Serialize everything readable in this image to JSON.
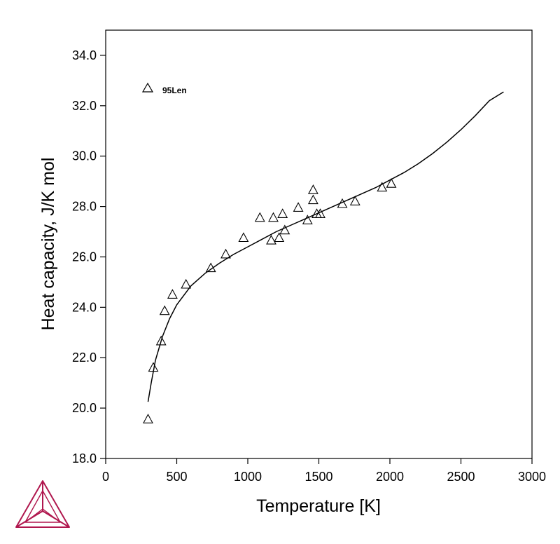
{
  "chart_data": {
    "type": "scatter",
    "xlabel": "Temperature [K]",
    "ylabel": "Heat capacity, J/K mol",
    "xlim": [
      0,
      3000
    ],
    "ylim": [
      18.0,
      35.0
    ],
    "x_ticks": [
      "0",
      "500",
      "1000",
      "1500",
      "2000",
      "2500",
      "3000"
    ],
    "y_ticks": [
      "18.0",
      "20.0",
      "22.0",
      "24.0",
      "26.0",
      "28.0",
      "30.0",
      "32.0",
      "34.0"
    ],
    "grid": false,
    "legend": {
      "position": "top-left",
      "entries": [
        {
          "marker": "triangle-open",
          "label": "95Len"
        }
      ]
    },
    "series": [
      {
        "name": "95Len",
        "kind": "scatter",
        "marker": "triangle-open",
        "points": [
          [
            298,
            19.55
          ],
          [
            335,
            21.6
          ],
          [
            390,
            22.65
          ],
          [
            415,
            23.85
          ],
          [
            470,
            24.5
          ],
          [
            565,
            24.9
          ],
          [
            740,
            25.55
          ],
          [
            845,
            26.1
          ],
          [
            970,
            26.75
          ],
          [
            1085,
            27.55
          ],
          [
            1165,
            26.65
          ],
          [
            1180,
            27.55
          ],
          [
            1220,
            26.75
          ],
          [
            1245,
            27.7
          ],
          [
            1260,
            27.05
          ],
          [
            1355,
            27.95
          ],
          [
            1420,
            27.45
          ],
          [
            1460,
            28.25
          ],
          [
            1460,
            28.65
          ],
          [
            1485,
            27.7
          ],
          [
            1510,
            27.7
          ],
          [
            1665,
            28.1
          ],
          [
            1755,
            28.2
          ],
          [
            1945,
            28.75
          ],
          [
            2010,
            28.9
          ]
        ]
      },
      {
        "kind": "line",
        "color": "#000000",
        "points": [
          [
            298,
            20.25
          ],
          [
            320,
            21.0
          ],
          [
            350,
            21.9
          ],
          [
            400,
            22.85
          ],
          [
            450,
            23.55
          ],
          [
            500,
            24.1
          ],
          [
            600,
            24.85
          ],
          [
            700,
            25.35
          ],
          [
            800,
            25.75
          ],
          [
            900,
            26.1
          ],
          [
            1000,
            26.4
          ],
          [
            1100,
            26.7
          ],
          [
            1200,
            27.0
          ],
          [
            1300,
            27.25
          ],
          [
            1400,
            27.5
          ],
          [
            1500,
            27.75
          ],
          [
            1600,
            28.0
          ],
          [
            1700,
            28.25
          ],
          [
            1800,
            28.5
          ],
          [
            1900,
            28.75
          ],
          [
            2000,
            29.05
          ],
          [
            2100,
            29.35
          ],
          [
            2200,
            29.7
          ],
          [
            2300,
            30.1
          ],
          [
            2400,
            30.55
          ],
          [
            2500,
            31.05
          ],
          [
            2600,
            31.6
          ],
          [
            2700,
            32.2
          ],
          [
            2800,
            32.55
          ]
        ]
      }
    ]
  },
  "logo": {
    "name": "thermo-calc-logo",
    "color": "#b0174e"
  }
}
